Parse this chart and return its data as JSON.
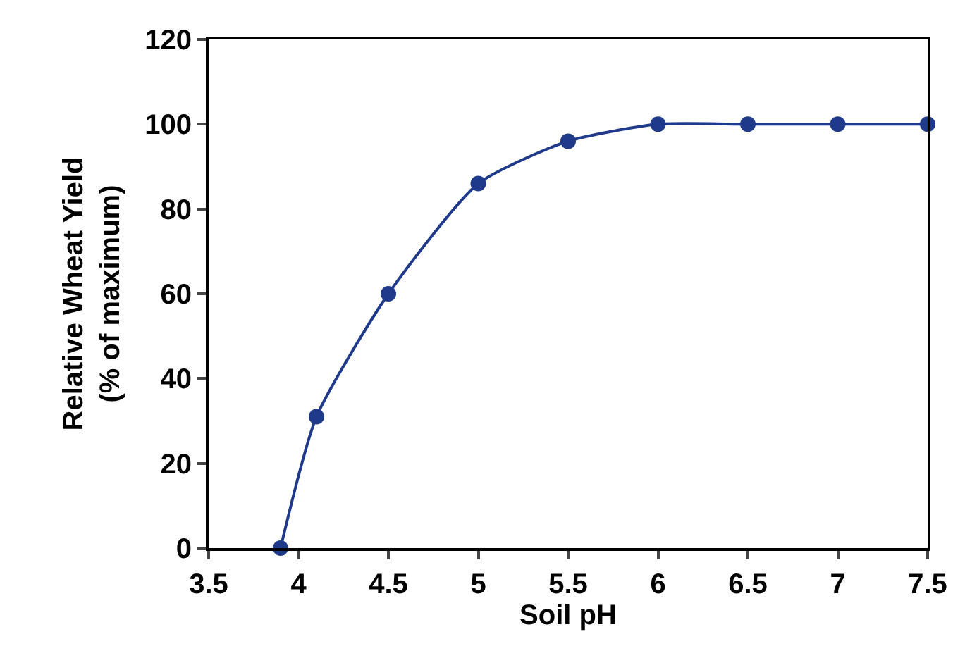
{
  "chart_data": {
    "type": "line",
    "xlabel": "Soil pH",
    "ylabel": "Relative Wheat Yield\n(% of maximum)",
    "x": [
      3.9,
      4.1,
      4.5,
      5,
      5.5,
      6,
      6.5,
      7,
      7.5
    ],
    "series": [
      {
        "color": "#1f3a8a",
        "values": [
          0,
          31,
          60,
          86,
          96,
          100,
          100,
          100,
          100
        ]
      }
    ],
    "xlim": [
      3.5,
      7.5
    ],
    "xticks": [
      3.5,
      4,
      4.5,
      5,
      5.5,
      6,
      6.5,
      7,
      7.5
    ],
    "ylim": [
      0,
      120
    ],
    "yticks": [
      0,
      20,
      40,
      60,
      80,
      100,
      120
    ],
    "grid": false,
    "marker": "circle",
    "line_style": "solid"
  }
}
